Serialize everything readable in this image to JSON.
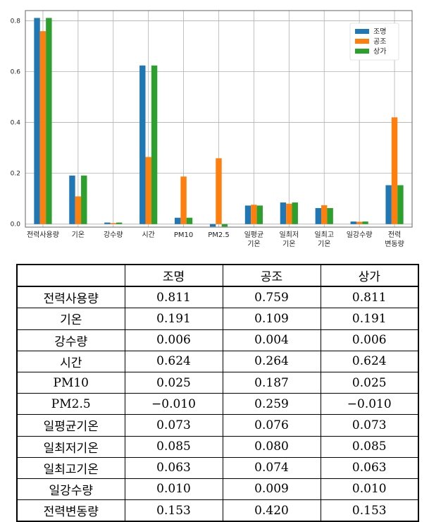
{
  "chart_data": {
    "type": "bar",
    "categories": [
      "전력사용량",
      "기온",
      "강수량",
      "시간",
      "PM10",
      "PM2.5",
      "일평균\n기온",
      "일최저\n기온",
      "일최고\n기온",
      "일강수량",
      "전력\n변동량"
    ],
    "series": [
      {
        "name": "조명",
        "color": "#1f77b4",
        "values": [
          0.811,
          0.191,
          0.006,
          0.624,
          0.025,
          -0.01,
          0.073,
          0.085,
          0.063,
          0.01,
          0.153
        ]
      },
      {
        "name": "공조",
        "color": "#ff7f0e",
        "values": [
          0.759,
          0.109,
          0.004,
          0.264,
          0.187,
          0.259,
          0.076,
          0.08,
          0.074,
          0.009,
          0.42
        ]
      },
      {
        "name": "상가",
        "color": "#2ca02c",
        "values": [
          0.811,
          0.191,
          0.006,
          0.624,
          0.025,
          -0.01,
          0.073,
          0.085,
          0.063,
          0.01,
          0.153
        ]
      }
    ],
    "yticks": [
      "0.0",
      "0.2",
      "0.4",
      "0.6",
      "0.8"
    ],
    "ylim": [
      -0.012,
      0.84
    ],
    "grid": true,
    "legend": "top-right"
  },
  "table": {
    "headers": [
      "",
      "조명",
      "공조",
      "상가"
    ],
    "rows": [
      [
        "전력사용량",
        "0.811",
        "0.759",
        "0.811"
      ],
      [
        "기온",
        "0.191",
        "0.109",
        "0.191"
      ],
      [
        "강수량",
        "0.006",
        "0.004",
        "0.006"
      ],
      [
        "시간",
        "0.624",
        "0.264",
        "0.624"
      ],
      [
        "PM10",
        "0.025",
        "0.187",
        "0.025"
      ],
      [
        "PM2.5",
        "−0.010",
        "0.259",
        "−0.010"
      ],
      [
        "일평균기온",
        "0.073",
        "0.076",
        "0.073"
      ],
      [
        "일최저기온",
        "0.085",
        "0.080",
        "0.085"
      ],
      [
        "일최고기온",
        "0.063",
        "0.074",
        "0.063"
      ],
      [
        "일강수량",
        "0.010",
        "0.009",
        "0.010"
      ],
      [
        "전력변동량",
        "0.153",
        "0.420",
        "0.153"
      ]
    ]
  }
}
